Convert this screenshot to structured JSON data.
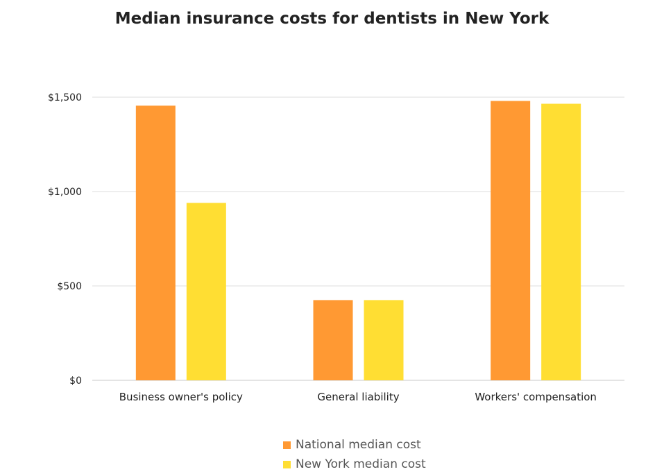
{
  "chart_data": {
    "type": "bar",
    "title": "Median insurance costs for dentists in New York",
    "xlabel": "",
    "ylabel": "",
    "categories": [
      "Business owner's policy",
      "General liability",
      "Workers' compensation"
    ],
    "series": [
      {
        "name": "National median cost",
        "color": "#FF9933",
        "values": [
          1455,
          425,
          1480
        ]
      },
      {
        "name": "New York median cost",
        "color": "#FFDE33",
        "values": [
          940,
          425,
          1465
        ]
      }
    ],
    "ylim": [
      0,
      1500
    ],
    "yticks": [
      0,
      500,
      1000,
      1500
    ],
    "ytick_labels": [
      "$0",
      "$500",
      "$1,000",
      "$1,500"
    ],
    "grid": true,
    "legend": "bottom"
  }
}
